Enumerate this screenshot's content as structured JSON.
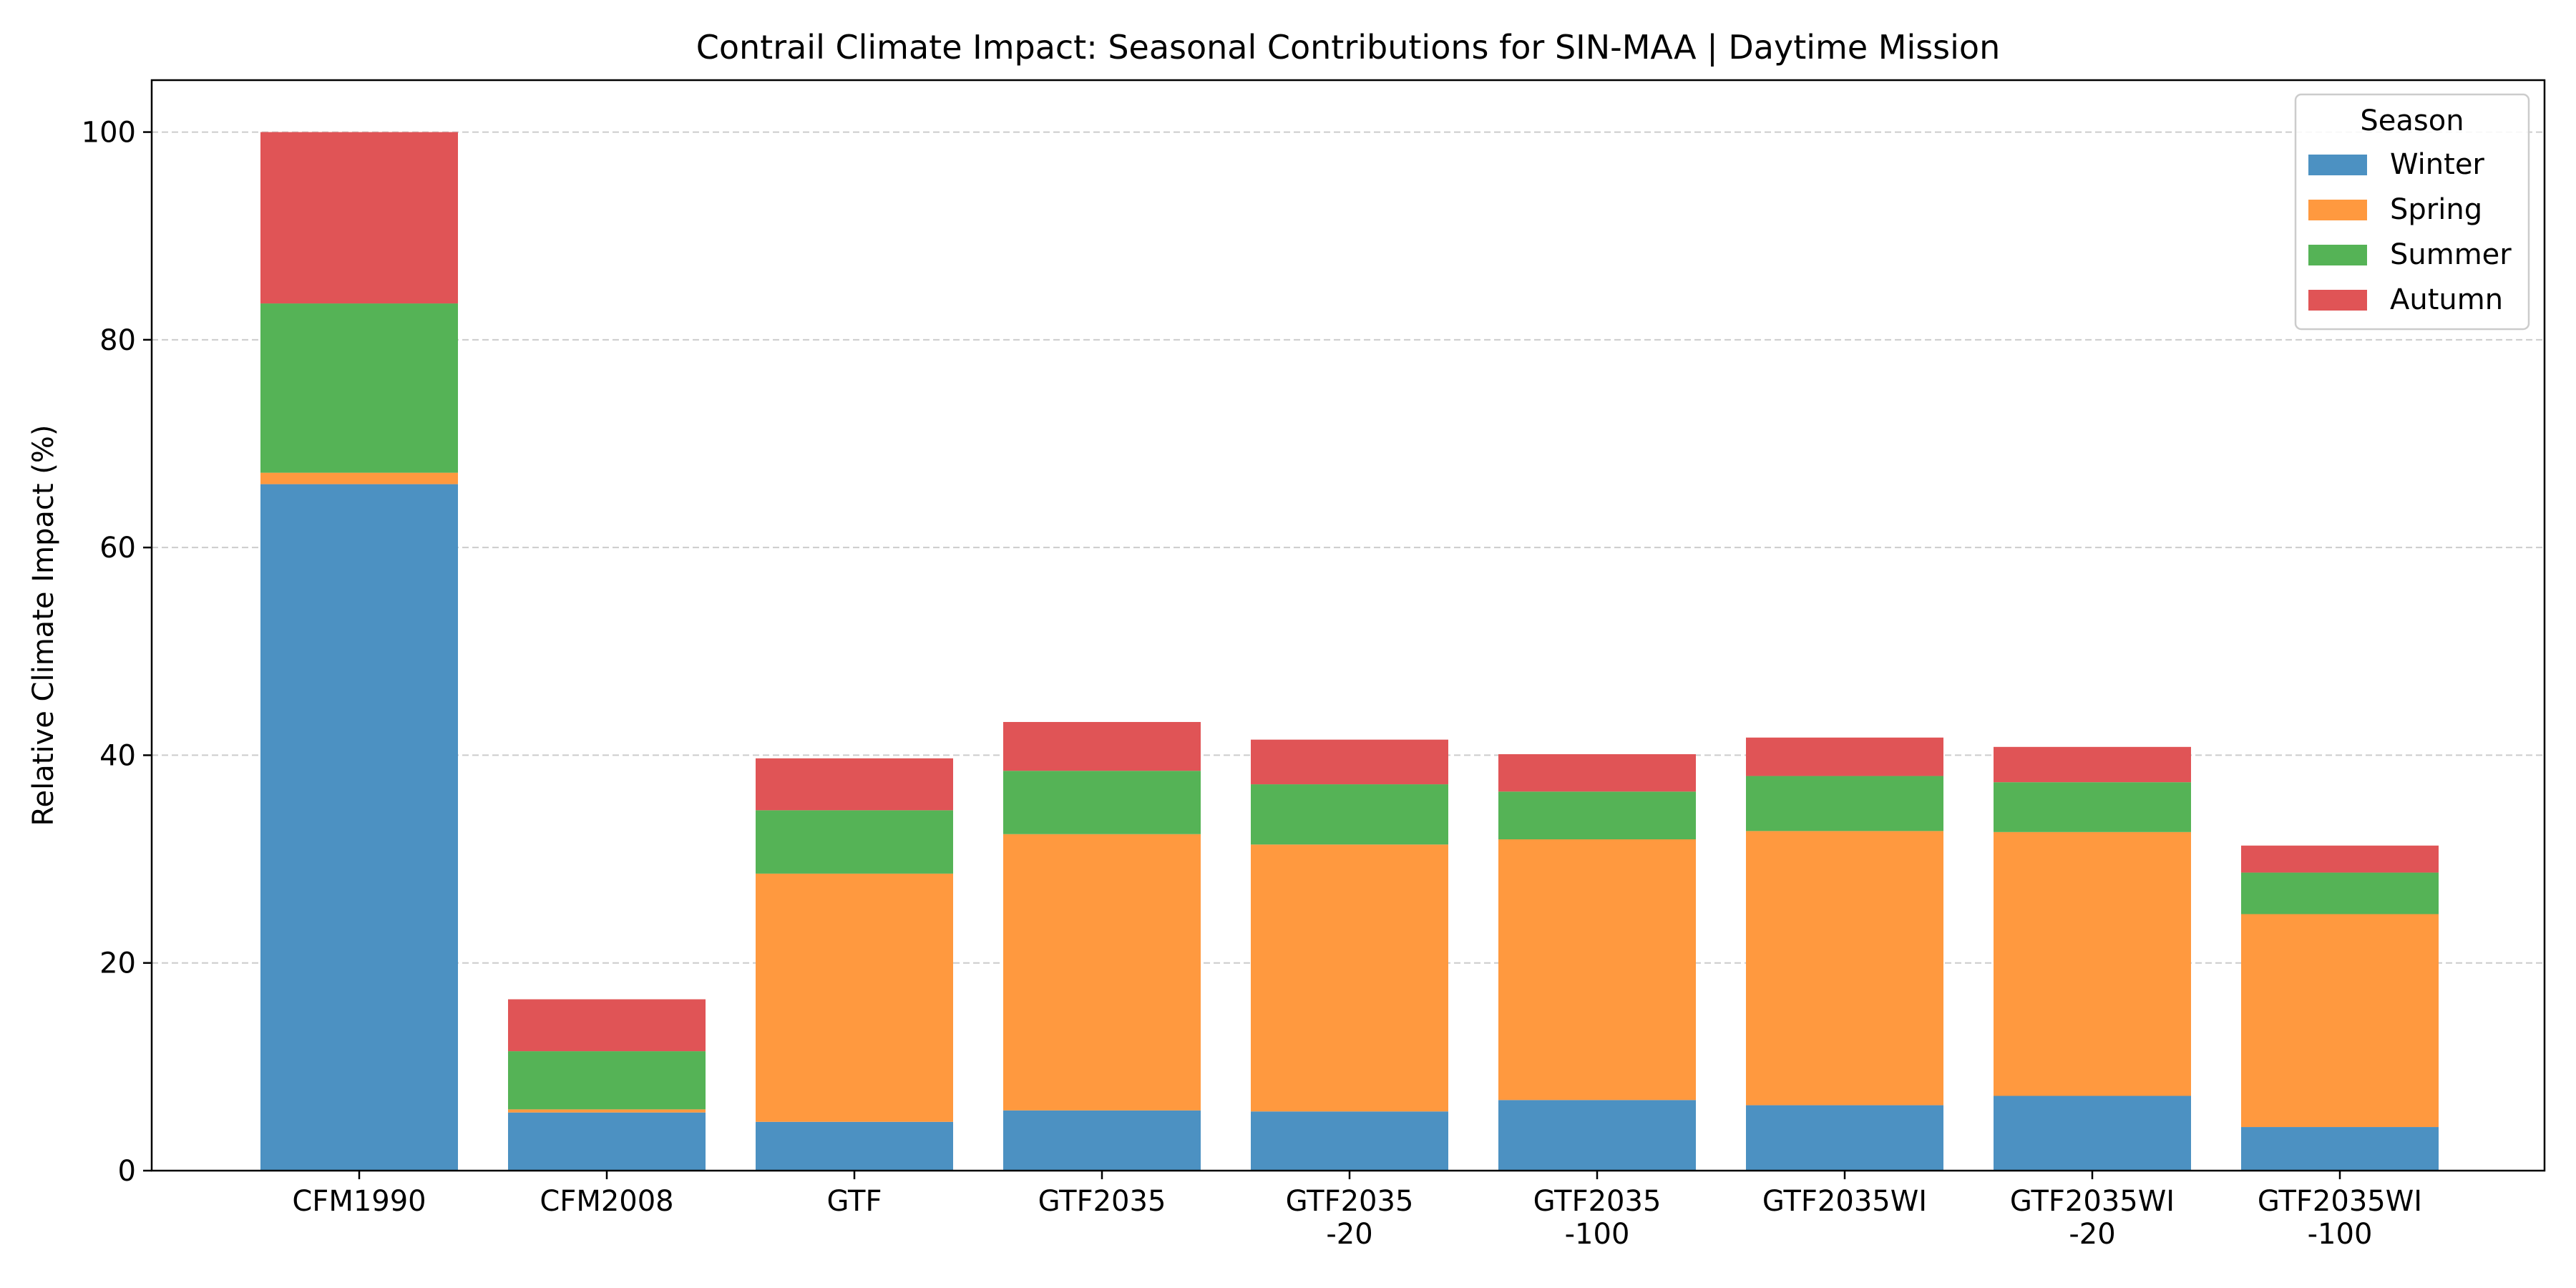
{
  "chart_data": {
    "type": "bar",
    "stacked": true,
    "title": "Contrail Climate Impact: Seasonal Contributions for SIN-MAA | Daytime Mission",
    "xlabel": "",
    "ylabel": "Relative Climate Impact (%)",
    "ylim": [
      0,
      105
    ],
    "yticks": [
      0,
      20,
      40,
      60,
      80,
      100
    ],
    "grid": "y-dashed",
    "categories": [
      [
        "CFM1990"
      ],
      [
        "CFM2008"
      ],
      [
        "GTF"
      ],
      [
        "GTF2035"
      ],
      [
        "GTF2035",
        "-20"
      ],
      [
        "GTF2035",
        "-100"
      ],
      [
        "GTF2035WI"
      ],
      [
        "GTF2035WI",
        "-20"
      ],
      [
        "GTF2035WI",
        "-100"
      ]
    ],
    "legend": {
      "title": "Season",
      "placement": "top-right"
    },
    "series": [
      {
        "name": "Winter",
        "color": "#4c91c2",
        "values": [
          66.1,
          5.6,
          4.7,
          5.8,
          5.7,
          6.8,
          6.3,
          7.2,
          4.2
        ]
      },
      {
        "name": "Spring",
        "color": "#ff993f",
        "values": [
          1.1,
          0.3,
          23.9,
          26.6,
          25.7,
          25.1,
          26.4,
          25.4,
          20.5
        ]
      },
      {
        "name": "Summer",
        "color": "#55b356",
        "values": [
          16.3,
          5.6,
          6.1,
          6.1,
          5.8,
          4.6,
          5.3,
          4.8,
          4.0
        ]
      },
      {
        "name": "Autumn",
        "color": "#e05456",
        "values": [
          16.5,
          5.0,
          5.0,
          4.7,
          4.3,
          3.6,
          3.7,
          3.4,
          2.6
        ]
      }
    ]
  }
}
